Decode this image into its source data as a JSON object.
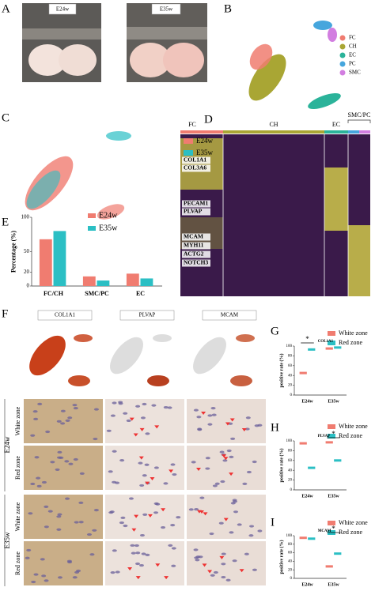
{
  "panel_labels": [
    "A",
    "B",
    "C",
    "D",
    "E",
    "F",
    "G",
    "H",
    "I"
  ],
  "photos": [
    "E24w",
    "E35w"
  ],
  "umap_clusters": {
    "legend": [
      {
        "name": "FC",
        "color": "#f07c70"
      },
      {
        "name": "CH",
        "color": "#a9a634"
      },
      {
        "name": "EC",
        "color": "#2bb39a"
      },
      {
        "name": "PC",
        "color": "#46a6dd"
      },
      {
        "name": "SMC",
        "color": "#d27ee0"
      }
    ]
  },
  "umap_stage": {
    "legend": [
      {
        "name": "E24w",
        "color": "#f07c70"
      },
      {
        "name": "E35w",
        "color": "#2bbfc4"
      }
    ]
  },
  "heatmap": {
    "clusters": [
      "FC",
      "CH",
      "EC",
      "SMC/PC"
    ],
    "genes": [
      "COL1A1",
      "COL3A6",
      "PECAM1",
      "PLVAP",
      "MCAM",
      "MYH11",
      "ACTG2",
      "NOTCH3"
    ]
  },
  "ihc": {
    "columns": [
      "COL1A1",
      "PLVAP",
      "MCAM"
    ],
    "stages": [
      "E24w",
      "E35w"
    ],
    "zones": [
      "White zone",
      "Red zone",
      "White zone",
      "Red zone"
    ]
  },
  "chart_data": [
    {
      "type": "bar",
      "ylabel": "Percentage (%)",
      "categories": [
        "FC/CH",
        "SMC/PC",
        "EC"
      ],
      "series": [
        {
          "name": "E24w",
          "color": "#f07c70",
          "values": [
            68,
            14,
            18
          ]
        },
        {
          "name": "E35w",
          "color": "#2bbfc4",
          "values": [
            80,
            8,
            11
          ]
        }
      ],
      "ylim": [
        0,
        100
      ],
      "yticks": [
        0,
        20,
        50,
        100
      ]
    },
    {
      "type": "dash",
      "title": "COL1A1",
      "ylabel": "positive rate (%)",
      "categories": [
        "E24w",
        "E35w"
      ],
      "series": [
        {
          "name": "White zone",
          "color": "#f07c70",
          "values": [
            45,
            95
          ]
        },
        {
          "name": "Red zone",
          "color": "#2bbfc4",
          "values": [
            93,
            97
          ]
        }
      ],
      "ylim": [
        0,
        100
      ],
      "yticks": [
        0,
        20,
        40,
        60,
        80,
        100
      ],
      "annotations": [
        {
          "text": "*",
          "x": "E24w"
        }
      ]
    },
    {
      "type": "dash",
      "title": "PLVAP",
      "ylabel": "positive rate (%)",
      "categories": [
        "E24w",
        "E35w"
      ],
      "series": [
        {
          "name": "White zone",
          "color": "#f07c70",
          "values": [
            95,
            97
          ]
        },
        {
          "name": "Red zone",
          "color": "#2bbfc4",
          "values": [
            45,
            60
          ]
        }
      ],
      "ylim": [
        0,
        100
      ],
      "yticks": [
        0,
        20,
        40,
        60,
        80,
        100
      ],
      "annotations": [
        {
          "text": "*",
          "x": "E35w"
        }
      ]
    },
    {
      "type": "dash",
      "title": "MCAM",
      "ylabel": "positive rate (%)",
      "categories": [
        "E24w",
        "E35w"
      ],
      "series": [
        {
          "name": "White zone",
          "color": "#f07c70",
          "values": [
            95,
            28
          ]
        },
        {
          "name": "Red zone",
          "color": "#2bbfc4",
          "values": [
            93,
            58
          ]
        }
      ],
      "ylim": [
        0,
        100
      ],
      "yticks": [
        0,
        20,
        40,
        60,
        80,
        100
      ],
      "annotations": [
        {
          "text": "*",
          "x": "E35w"
        }
      ]
    }
  ]
}
